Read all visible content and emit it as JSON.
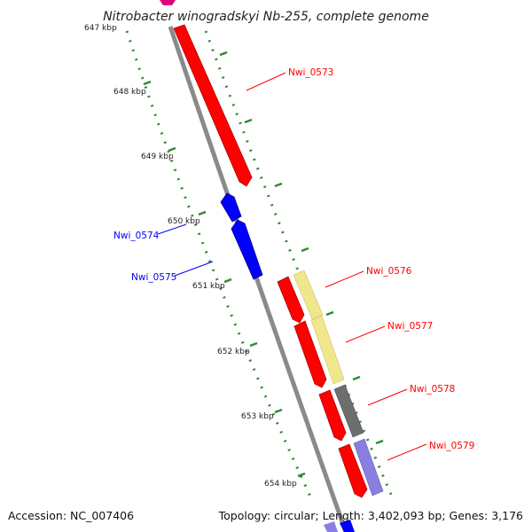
{
  "title": "Nitrobacter winogradskyi Nb-255, complete genome",
  "accession": "Accession: NC_007406",
  "summary": "Topology: circular; Length: 3,402,093 bp; Genes: 3,176",
  "ticks": [
    "647 kbp",
    "648 kbp",
    "649 kbp",
    "650 kbp",
    "651 kbp",
    "652 kbp",
    "653 kbp",
    "654 kbp"
  ],
  "genes": [
    {
      "name": "Nwi_0573",
      "strand": "forward",
      "color": "#ff0000"
    },
    {
      "name": "Nwi_0574",
      "strand": "reverse",
      "color": "#0000ff"
    },
    {
      "name": "Nwi_0575",
      "strand": "reverse",
      "color": "#0000ff"
    },
    {
      "name": "Nwi_0576",
      "strand": "forward",
      "color": "#ff0000"
    },
    {
      "name": "Nwi_0577",
      "strand": "forward",
      "color": "#ff0000"
    },
    {
      "name": "Nwi_0578",
      "strand": "forward",
      "color": "#ff0000"
    },
    {
      "name": "Nwi_0579",
      "strand": "forward",
      "color": "#ff0000"
    }
  ],
  "colors": {
    "backbone": "#8a8a8a",
    "forward": "#ff0000",
    "reverse": "#0000ff",
    "tick_dots": "#2e8b2e",
    "cog_yellow": "#f0e68c",
    "cog_gray": "#6e6e6e",
    "cog_purple": "#8a7fe0",
    "partial_magenta": "#e0007a"
  }
}
